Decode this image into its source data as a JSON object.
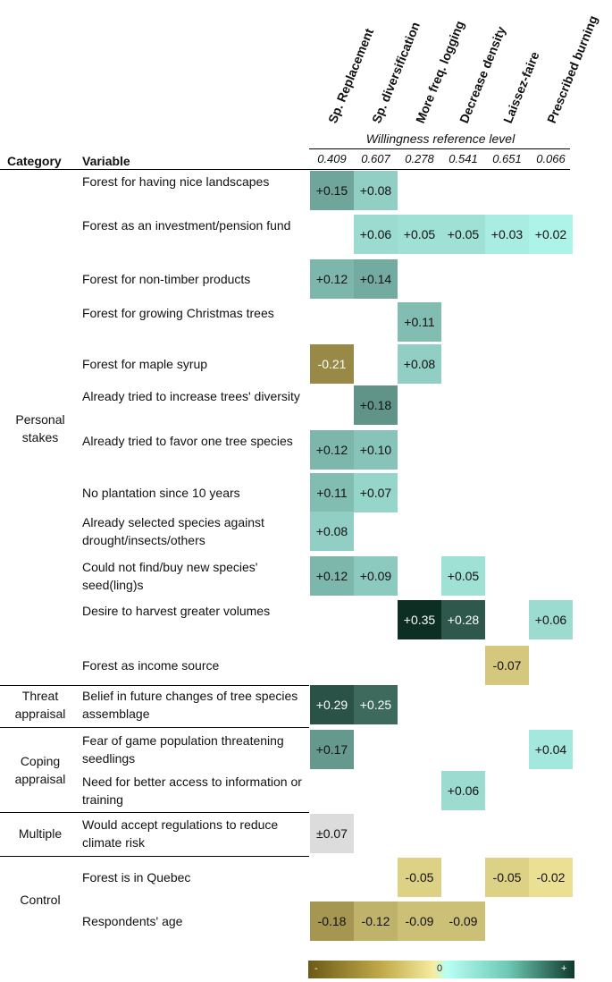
{
  "chart_data": {
    "type": "heatmap",
    "columns": [
      "Sp. Replacement",
      "Sp. diversification",
      "More freq. logging",
      "Decrease density",
      "Laissez-faire",
      "Prescribed burning"
    ],
    "reference_title": "Willingness reference level",
    "reference_levels": [
      "0.409",
      "0.607",
      "0.278",
      "0.541",
      "0.651",
      "0.066"
    ],
    "header_category": "Category",
    "header_variable": "Variable",
    "rows": [
      {
        "label": "Forest for having nice landscapes",
        "values": [
          "+0.15",
          "+0.08",
          null,
          null,
          null,
          null
        ]
      },
      {
        "label": "Forest as an investment/pension fund",
        "values": [
          null,
          "+0.06",
          "+0.05",
          "+0.05",
          "+0.03",
          "+0.02"
        ]
      },
      {
        "label": "Forest for non-timber products",
        "values": [
          "+0.12",
          "+0.14",
          null,
          null,
          null,
          null
        ]
      },
      {
        "label": "Forest for growing Christmas trees",
        "values": [
          null,
          null,
          "+0.11",
          null,
          null,
          null
        ]
      },
      {
        "label": "Forest for maple syrup",
        "values": [
          "-0.21",
          null,
          "+0.08",
          null,
          null,
          null
        ]
      },
      {
        "label": "Already tried to increase trees' diversity",
        "values": [
          null,
          "+0.18",
          null,
          null,
          null,
          null
        ]
      },
      {
        "label": "Already tried to favor one tree species",
        "values": [
          "+0.12",
          "+0.10",
          null,
          null,
          null,
          null
        ]
      },
      {
        "label": "No plantation since 10 years",
        "values": [
          "+0.11",
          "+0.07",
          null,
          null,
          null,
          null
        ]
      },
      {
        "label": "Already selected species against drought/insects/others",
        "values": [
          "+0.08",
          null,
          null,
          null,
          null,
          null
        ]
      },
      {
        "label": "Could not find/buy new species' seed(ling)s",
        "values": [
          "+0.12",
          "+0.09",
          null,
          "+0.05",
          null,
          null
        ]
      },
      {
        "label": "Desire to harvest greater volumes",
        "values": [
          null,
          null,
          "+0.35",
          "+0.28",
          null,
          "+0.06"
        ]
      },
      {
        "label": "Forest as income source",
        "values": [
          null,
          null,
          null,
          null,
          "-0.07",
          null
        ]
      },
      {
        "label": "Belief in future changes of tree species assemblage",
        "values": [
          "+0.29",
          "+0.25",
          null,
          null,
          null,
          null
        ]
      },
      {
        "label": "Fear of game population threatening seedlings",
        "values": [
          "+0.17",
          null,
          null,
          null,
          null,
          "+0.04"
        ]
      },
      {
        "label": "Need for better access to information or training",
        "values": [
          null,
          null,
          null,
          "+0.06",
          null,
          null
        ]
      },
      {
        "label": "Would accept regulations to reduce climate risk",
        "values": [
          "±0.07",
          null,
          null,
          null,
          null,
          null
        ]
      },
      {
        "label": "Forest is in Quebec",
        "values": [
          null,
          null,
          "-0.05",
          null,
          "-0.05",
          "-0.02"
        ]
      },
      {
        "label": "Respondents' age",
        "values": [
          "-0.18",
          "-0.12",
          "-0.09",
          "-0.09",
          null,
          null
        ]
      }
    ],
    "categories": [
      {
        "label": "Personal stakes",
        "first_row": 0,
        "last_row": 11
      },
      {
        "label": "Threat appraisal",
        "first_row": 12,
        "last_row": 12
      },
      {
        "label": "Coping appraisal",
        "first_row": 13,
        "last_row": 14
      },
      {
        "label": "Multiple",
        "first_row": 15,
        "last_row": 15
      },
      {
        "label": "Control",
        "first_row": 16,
        "last_row": 17
      }
    ],
    "legend": {
      "min_label": "-",
      "mid_label": "0",
      "max_label": "+"
    },
    "color_scale": {
      "negative_max": "#5c4a0e",
      "negative_light": "#f3e89a",
      "positive_light": "#b8fff4",
      "positive_max": "#0d2e22",
      "neutral": "#dcdcdc"
    }
  }
}
